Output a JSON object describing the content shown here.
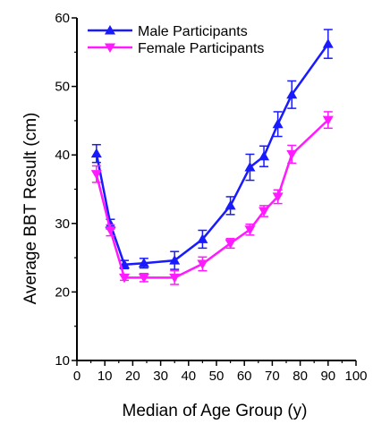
{
  "chart_data": {
    "type": "line",
    "xlabel": "Median of Age Group (y)",
    "ylabel": "Average BBT Result (cm)",
    "xlim": [
      0,
      100
    ],
    "ylim": [
      10,
      60
    ],
    "xticks": [
      0,
      10,
      20,
      30,
      40,
      50,
      60,
      70,
      80,
      90,
      100
    ],
    "yticks": [
      10,
      20,
      30,
      40,
      50,
      60
    ],
    "grid": false,
    "legend_position": "top-left",
    "series": [
      {
        "name": "Male Participants",
        "color": "#1a1aff",
        "marker": "triangle-up",
        "x": [
          7,
          12,
          17,
          24,
          35,
          45,
          55,
          62,
          67,
          72,
          77,
          90
        ],
        "y": [
          40.2,
          29.9,
          24.0,
          24.2,
          24.6,
          27.7,
          32.6,
          38.2,
          39.8,
          44.5,
          48.8,
          56.2
        ],
        "err": [
          1.3,
          0.7,
          0.6,
          0.7,
          1.3,
          1.3,
          1.3,
          1.9,
          1.5,
          1.8,
          2.0,
          2.1
        ]
      },
      {
        "name": "Female Participants",
        "color": "#ff1aff",
        "marker": "triangle-down",
        "x": [
          7,
          12,
          17,
          24,
          35,
          45,
          55,
          62,
          67,
          72,
          77,
          90
        ],
        "y": [
          37.2,
          29.0,
          22.1,
          22.1,
          22.1,
          24.1,
          27.1,
          29.1,
          31.8,
          33.9,
          40.1,
          45.1
        ],
        "err": [
          1.2,
          0.8,
          0.4,
          0.6,
          1.0,
          1.0,
          0.7,
          0.8,
          0.8,
          1.0,
          1.3,
          1.2
        ]
      }
    ]
  }
}
